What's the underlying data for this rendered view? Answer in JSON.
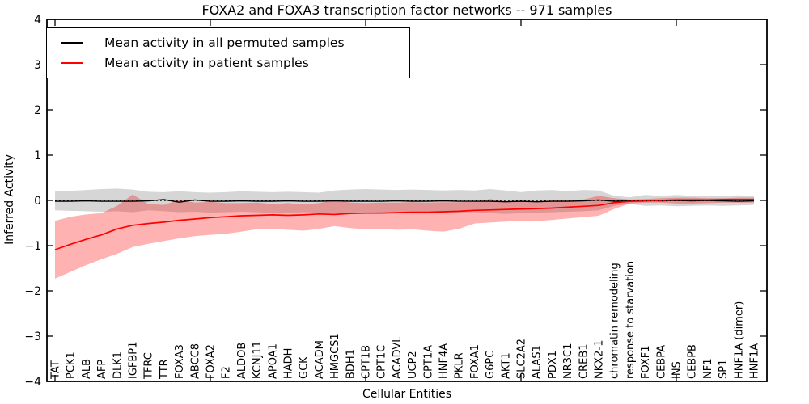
{
  "chart_data": {
    "type": "line",
    "title": "FOXA2 and FOXA3 transcription factor networks -- 971 samples",
    "xlabel": "Cellular Entities",
    "ylabel": "Inferred Activity",
    "ylim": [
      -4,
      4
    ],
    "yticks": [
      4,
      3,
      2,
      1,
      0,
      -1,
      -2,
      -3,
      -4
    ],
    "y_tick_labels": [
      "4",
      "3",
      "2",
      "1",
      "0",
      "−1",
      "−2",
      "−3",
      "−4"
    ],
    "xtick_positions": [
      0,
      10,
      20,
      30,
      40
    ],
    "grid": false,
    "legend_position": "upper left",
    "categories": [
      "TAT",
      "PCK1",
      "ALB",
      "AFP",
      "DLK1",
      "IGFBP1",
      "TFRC",
      "TTR",
      "FOXA3",
      "ABCC8",
      "FOXA2",
      "F2",
      "ALDOB",
      "KCNJ11",
      "APOA1",
      "HADH",
      "GCK",
      "ACADM",
      "HMGCS1",
      "BDH1",
      "CPT1B",
      "CPT1C",
      "ACADVL",
      "UCP2",
      "CPT1A",
      "HNF4A",
      "PKLR",
      "FOXA1",
      "G6PC",
      "AKT1",
      "SLC2A2",
      "ALAS1",
      "PDX1",
      "NR3C1",
      "CREB1",
      "NKX2-1",
      "chromatin remodeling",
      "response to starvation",
      "FOXF1",
      "CEBPA",
      "INS",
      "CEBPB",
      "NF1",
      "SP1",
      "HNF1A (dimer)",
      "HNF1A"
    ],
    "zero_line": {
      "y": 0,
      "style": "dotted",
      "color": "#000000"
    },
    "series": [
      {
        "name": "Mean activity in all permuted samples",
        "color": "#000000",
        "values": [
          -0.02,
          -0.02,
          -0.01,
          -0.02,
          -0.02,
          -0.02,
          -0.01,
          0.02,
          -0.04,
          0.01,
          -0.02,
          -0.02,
          -0.01,
          -0.02,
          -0.02,
          -0.01,
          -0.02,
          -0.02,
          -0.01,
          -0.02,
          -0.02,
          -0.02,
          -0.01,
          -0.02,
          -0.02,
          -0.01,
          -0.02,
          -0.02,
          -0.02,
          -0.03,
          -0.02,
          -0.03,
          -0.02,
          -0.02,
          -0.01,
          0.01,
          -0.02,
          -0.01,
          0.0,
          -0.01,
          0.0,
          -0.01,
          0.0,
          -0.01,
          -0.02,
          -0.01
        ]
      },
      {
        "name": "Mean activity in patient samples",
        "color": "#ff0000",
        "values": [
          -1.09,
          -0.97,
          -0.86,
          -0.76,
          -0.63,
          -0.55,
          -0.51,
          -0.48,
          -0.44,
          -0.41,
          -0.38,
          -0.36,
          -0.34,
          -0.33,
          -0.32,
          -0.33,
          -0.32,
          -0.3,
          -0.31,
          -0.29,
          -0.28,
          -0.28,
          -0.27,
          -0.26,
          -0.26,
          -0.25,
          -0.24,
          -0.22,
          -0.21,
          -0.2,
          -0.19,
          -0.18,
          -0.17,
          -0.15,
          -0.13,
          -0.11,
          -0.05,
          -0.02,
          -0.01,
          0.0,
          0.01,
          0.01,
          0.01,
          0.02,
          0.02,
          0.02
        ]
      }
    ],
    "bands": [
      {
        "name": "permuted-samples-spread",
        "color": "rgba(128,128,128,0.32)",
        "upper": [
          0.2,
          0.21,
          0.23,
          0.25,
          0.26,
          0.24,
          0.19,
          0.18,
          0.2,
          0.18,
          0.17,
          0.18,
          0.2,
          0.19,
          0.18,
          0.19,
          0.18,
          0.17,
          0.22,
          0.24,
          0.25,
          0.24,
          0.23,
          0.24,
          0.23,
          0.22,
          0.23,
          0.22,
          0.25,
          0.22,
          0.18,
          0.22,
          0.23,
          0.2,
          0.23,
          0.22,
          0.1,
          0.07,
          0.12,
          0.1,
          0.12,
          0.1,
          0.09,
          0.1,
          0.11,
          0.1
        ],
        "lower": [
          -0.22,
          -0.23,
          -0.24,
          -0.25,
          -0.24,
          -0.26,
          -0.22,
          -0.24,
          -0.26,
          -0.25,
          -0.27,
          -0.26,
          -0.25,
          -0.26,
          -0.28,
          -0.27,
          -0.26,
          -0.27,
          -0.28,
          -0.27,
          -0.26,
          -0.27,
          -0.28,
          -0.27,
          -0.26,
          -0.28,
          -0.27,
          -0.26,
          -0.28,
          -0.3,
          -0.28,
          -0.27,
          -0.26,
          -0.25,
          -0.24,
          -0.22,
          -0.12,
          -0.08,
          -0.12,
          -0.11,
          -0.13,
          -0.12,
          -0.11,
          -0.12,
          -0.11,
          -0.1
        ]
      },
      {
        "name": "patient-samples-spread",
        "color": "rgba(255,0,0,0.30)",
        "upper": [
          -0.45,
          -0.36,
          -0.31,
          -0.28,
          -0.12,
          0.13,
          -0.08,
          -0.1,
          0.01,
          -0.05,
          -0.03,
          -0.06,
          -0.06,
          -0.05,
          -0.08,
          -0.06,
          -0.09,
          -0.06,
          0.01,
          -0.05,
          -0.06,
          -0.05,
          -0.05,
          -0.04,
          -0.05,
          -0.04,
          -0.04,
          -0.03,
          0.03,
          -0.02,
          -0.01,
          -0.02,
          0.0,
          0.01,
          0.02,
          0.1,
          0.05,
          0.02,
          0.03,
          0.05,
          0.06,
          0.06,
          0.05,
          0.05,
          0.06,
          0.06
        ],
        "lower": [
          -1.73,
          -1.58,
          -1.43,
          -1.3,
          -1.18,
          -1.03,
          -0.96,
          -0.9,
          -0.84,
          -0.79,
          -0.76,
          -0.74,
          -0.69,
          -0.64,
          -0.63,
          -0.65,
          -0.67,
          -0.63,
          -0.57,
          -0.61,
          -0.64,
          -0.63,
          -0.65,
          -0.64,
          -0.67,
          -0.69,
          -0.63,
          -0.51,
          -0.49,
          -0.47,
          -0.45,
          -0.46,
          -0.43,
          -0.4,
          -0.37,
          -0.34,
          -0.19,
          -0.07,
          -0.05,
          -0.05,
          -0.07,
          -0.07,
          -0.06,
          -0.05,
          -0.05,
          -0.05
        ]
      }
    ]
  },
  "legend": {
    "entries": [
      {
        "label": "Mean activity in all permuted samples",
        "color": "#000000"
      },
      {
        "label": "Mean activity in patient samples",
        "color": "#ff0000"
      }
    ]
  }
}
